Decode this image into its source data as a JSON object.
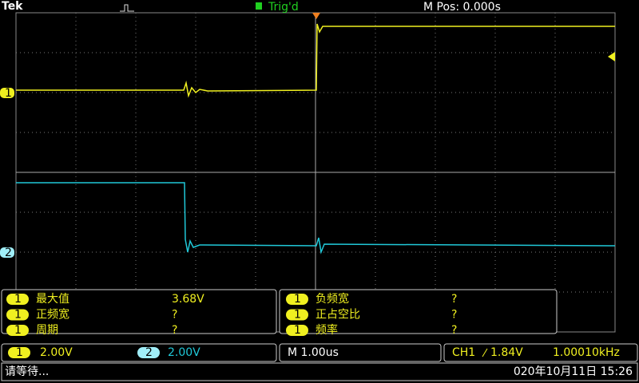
{
  "header": {
    "brand": "Tek",
    "trigger_status": "Trig'd",
    "position": "M Pos: 0.000s"
  },
  "channel_markers": [
    "1",
    "2"
  ],
  "measurements": [
    {
      "channel": "1",
      "label": "最大值",
      "value": "3.68V"
    },
    {
      "channel": "1",
      "label": "正频宽",
      "value": "?"
    },
    {
      "channel": "1",
      "label": "周期",
      "value": "?"
    },
    {
      "channel": "1",
      "label": "负频宽",
      "value": "?"
    },
    {
      "channel": "1",
      "label": "正占空比",
      "value": "?"
    },
    {
      "channel": "1",
      "label": "频率",
      "value": "?"
    }
  ],
  "bottom_bar": {
    "ch1": {
      "channel": "1",
      "scale": "2.00V"
    },
    "ch2": {
      "channel": "2",
      "scale": "2.00V"
    },
    "timebase": "M 1.00us",
    "trigger": {
      "source": "CH1",
      "level": "1.84V",
      "frequency": "1.00010kHz"
    }
  },
  "status": {
    "message": "请等待...",
    "datetime": "020年10月11日 15:26"
  }
}
